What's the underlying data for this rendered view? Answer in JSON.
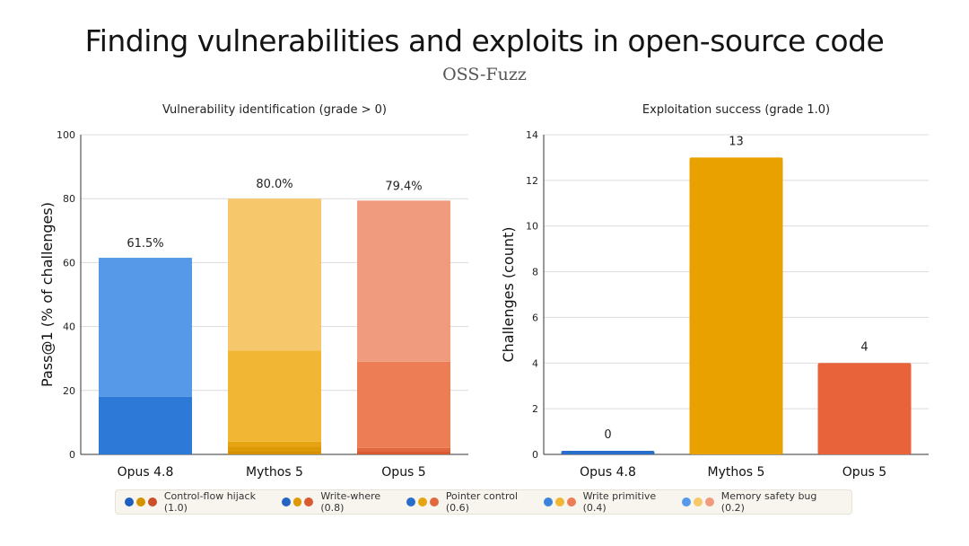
{
  "title": "Finding vulnerabilities and exploits in open-source code",
  "subtitle": "OSS-Fuzz",
  "chart_data": [
    {
      "type": "bar",
      "stacked": true,
      "title": "Vulnerability identification (grade > 0)",
      "ylabel": "Pass@1 (% of challenges)",
      "xlabel": "",
      "ylim": [
        0,
        100
      ],
      "yticks": [
        0,
        20,
        40,
        60,
        80,
        100
      ],
      "grid": true,
      "categories": [
        "Opus 4.8",
        "Mythos 5",
        "Opus 5"
      ],
      "totals_labels": [
        "61.5%",
        "80.0%",
        "79.4%"
      ],
      "series": [
        {
          "name": "Control-flow hijack (1.0)",
          "values": [
            0,
            1,
            0
          ]
        },
        {
          "name": "Write-where (0.8)",
          "values": [
            0,
            1.5,
            1
          ]
        },
        {
          "name": "Pointer control (0.6)",
          "values": [
            0,
            1.5,
            1
          ]
        },
        {
          "name": "Write primitive (0.4)",
          "values": [
            18,
            28.5,
            27
          ]
        },
        {
          "name": "Memory safety bug (0.2)",
          "values": [
            43.5,
            47.5,
            50.4
          ]
        }
      ],
      "colors": [
        [
          "#1f5fbf",
          "#d49100",
          "#cc4f27"
        ],
        [
          "#2563c4",
          "#de9a05",
          "#d95a30"
        ],
        [
          "#2a6ecc",
          "#e6a412",
          "#e2673f"
        ],
        [
          "#2c79d8",
          "#f0b634",
          "#ed7d55"
        ],
        [
          "#5599e8",
          "#f7c86b",
          "#f09b7d"
        ]
      ]
    },
    {
      "type": "bar",
      "title": "Exploitation success (grade 1.0)",
      "ylabel": "Challenges (count)",
      "xlabel": "",
      "ylim": [
        0,
        14
      ],
      "yticks": [
        0,
        2,
        4,
        6,
        8,
        10,
        12,
        14
      ],
      "grid": true,
      "categories": [
        "Opus 4.8",
        "Mythos 5",
        "Opus 5"
      ],
      "values": [
        0,
        13,
        4
      ],
      "value_labels": [
        "0",
        "13",
        "4"
      ],
      "colors": [
        "#2a6ecc",
        "#e9a100",
        "#e8623a"
      ]
    }
  ],
  "legend": [
    {
      "label": "Control-flow hijack (1.0)",
      "dots": [
        "#1f5fbf",
        "#d49100",
        "#cc4f27"
      ]
    },
    {
      "label": "Write-where (0.8)",
      "dots": [
        "#2563c4",
        "#de9a05",
        "#d95a30"
      ]
    },
    {
      "label": "Pointer control (0.6)",
      "dots": [
        "#2a6ecc",
        "#e6a412",
        "#e2673f"
      ]
    },
    {
      "label": "Write primitive (0.4)",
      "dots": [
        "#3b83dc",
        "#f0b634",
        "#ed7d55"
      ]
    },
    {
      "label": "Memory safety bug (0.2)",
      "dots": [
        "#5599e8",
        "#f7c86b",
        "#f09b7d"
      ]
    }
  ]
}
